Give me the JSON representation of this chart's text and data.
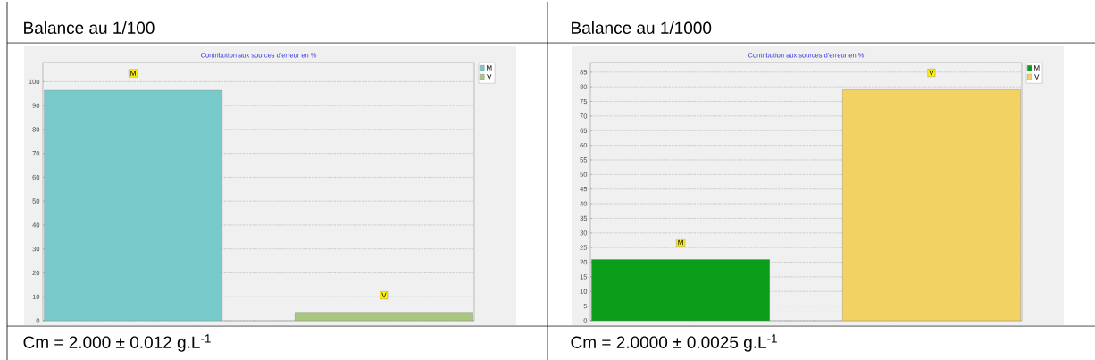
{
  "chart_data": [
    {
      "type": "bar",
      "title": "Balance au 1/100",
      "subtitle": "Contribution aux sources d'erreur en %",
      "categories": [
        null,
        null
      ],
      "series": [
        {
          "name": "M",
          "color": "#78caca",
          "values": [
            96.4,
            null
          ]
        },
        {
          "name": "V",
          "color": "#a9c87f",
          "values": [
            null,
            3.5
          ]
        }
      ],
      "ylim": [
        0,
        108
      ],
      "yticks": [
        0,
        10,
        20,
        30,
        40,
        50,
        60,
        70,
        80,
        90,
        100
      ],
      "grid": "y",
      "legend": "top right",
      "annotations": [
        "Cm = 2.000 ± 0.012 g.L$^{-1}$"
      ]
    },
    {
      "type": "bar",
      "title": "Balance au 1/1000",
      "subtitle": "Contribution aux sources d'erreur en %",
      "categories": [
        null,
        null
      ],
      "series": [
        {
          "name": "M",
          "color": "#0a9e1a",
          "values": [
            20.9,
            null
          ]
        },
        {
          "name": "V",
          "color": "#f1d263",
          "values": [
            null,
            79.0
          ]
        }
      ],
      "ylim": [
        0,
        88.3
      ],
      "yticks": [
        0,
        5,
        10,
        15,
        20,
        25,
        30,
        35,
        40,
        45,
        50,
        55,
        60,
        65,
        70,
        75,
        80,
        85
      ],
      "grid": "y",
      "legend": "top right",
      "annotations": [
        "Cm = 2.0000 ± 0.0025 g.L$^{-1}$"
      ]
    }
  ]
}
